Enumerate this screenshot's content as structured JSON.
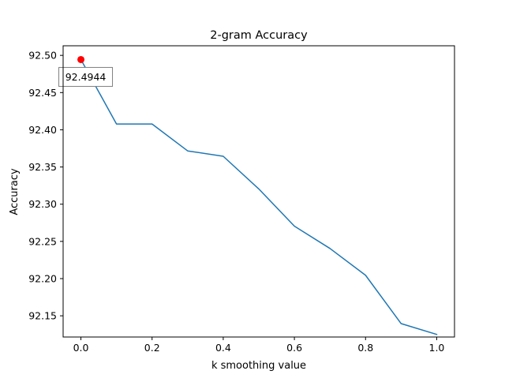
{
  "chart_data": {
    "type": "line",
    "title": "2-gram Accuracy",
    "xlabel": "k smoothing value",
    "ylabel": "Accuracy",
    "xlim": [
      -0.05,
      1.05
    ],
    "ylim": [
      92.1215,
      92.5129
    ],
    "xticks": [
      0.0,
      0.2,
      0.4,
      0.6,
      0.8,
      1.0
    ],
    "xtick_labels": [
      "0.0",
      "0.2",
      "0.4",
      "0.6",
      "0.8",
      "1.0"
    ],
    "yticks": [
      92.15,
      92.2,
      92.25,
      92.3,
      92.35,
      92.4,
      92.45,
      92.5
    ],
    "ytick_labels": [
      "92.15",
      "92.20",
      "92.25",
      "92.30",
      "92.35",
      "92.40",
      "92.45",
      "92.50"
    ],
    "grid": false,
    "series": [
      {
        "color": "#1f77b4",
        "x": [
          0.0,
          0.1,
          0.2,
          0.3,
          0.4,
          0.5,
          0.6,
          0.7,
          0.8,
          0.9,
          1.0
        ],
        "y": [
          92.4944,
          92.4078,
          92.4078,
          92.3716,
          92.3644,
          92.3205,
          92.2705,
          92.2405,
          92.2045,
          92.1395,
          92.125
        ]
      }
    ],
    "highlight": {
      "x": 0.0,
      "y": 92.4944,
      "color": "#ff0000",
      "label": "92.4944"
    }
  }
}
